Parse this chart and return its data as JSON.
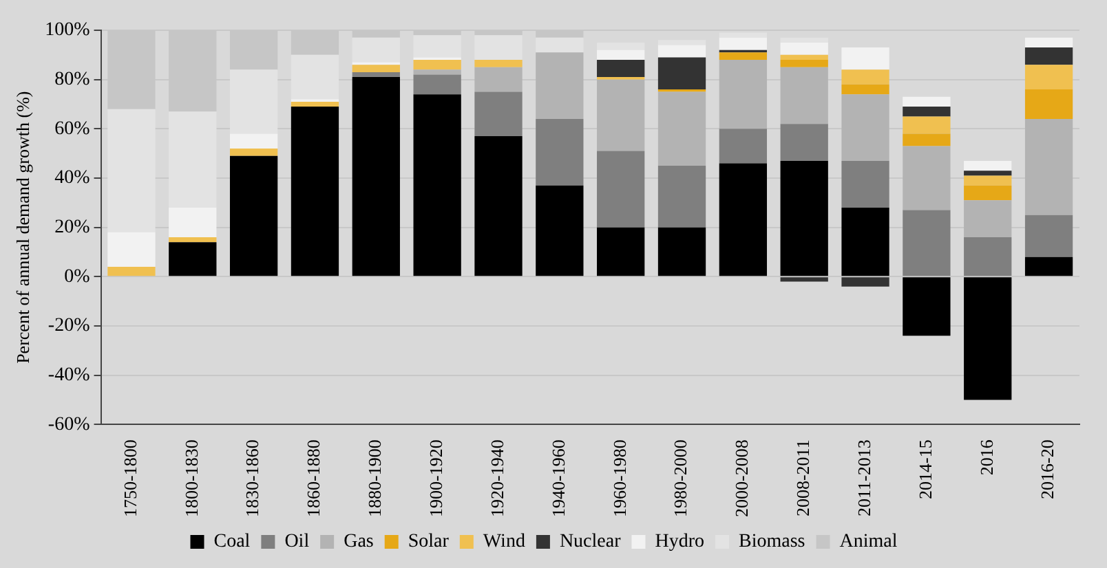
{
  "chart_data": {
    "type": "bar",
    "stacked": true,
    "ylabel": "Percent of annual demand growth (%)",
    "categories": [
      "1750-1800",
      "1800-1830",
      "1830-1860",
      "1860-1880",
      "1880-1900",
      "1900-1920",
      "1920-1940",
      "1940-1960",
      "1960-1980",
      "1980-2000",
      "2000-2008",
      "2008-2011",
      "2011-2013",
      "2014-15",
      "2016",
      "2016-20"
    ],
    "series": [
      {
        "name": "Coal",
        "color": "#000000",
        "values": [
          null,
          14,
          49,
          69,
          81,
          74,
          57,
          37,
          20,
          20,
          46,
          47,
          28,
          -24,
          -50,
          8
        ]
      },
      {
        "name": "Oil",
        "color": "#7f7f7f",
        "values": [
          null,
          null,
          null,
          null,
          2,
          8,
          18,
          27,
          31,
          25,
          14,
          15,
          19,
          27,
          16,
          17
        ]
      },
      {
        "name": "Gas",
        "color": "#b3b3b3",
        "values": [
          null,
          null,
          null,
          null,
          null,
          2,
          10,
          27,
          29,
          30,
          28,
          23,
          27,
          26,
          15,
          39
        ]
      },
      {
        "name": "Solar",
        "color": "#e6a817",
        "values": [
          null,
          null,
          null,
          null,
          null,
          null,
          null,
          null,
          null,
          1,
          3,
          3,
          4,
          5,
          6,
          12
        ]
      },
      {
        "name": "Wind",
        "color": "#f0c050",
        "values": [
          4,
          2,
          3,
          2,
          3,
          4,
          3,
          null,
          1,
          null,
          null,
          2,
          6,
          7,
          4,
          10
        ]
      },
      {
        "name": "Nuclear",
        "color": "#333333",
        "values": [
          null,
          null,
          null,
          null,
          null,
          null,
          null,
          null,
          7,
          13,
          1,
          -2,
          -4,
          4,
          2,
          7
        ]
      },
      {
        "name": "Hydro",
        "color": "#f2f2f2",
        "values": [
          14,
          12,
          6,
          1,
          1,
          1,
          null,
          null,
          4,
          5,
          5,
          5,
          9,
          4,
          4,
          4
        ]
      },
      {
        "name": "Biomass",
        "color": "#e3e3e3",
        "values": [
          50,
          39,
          26,
          18,
          10,
          9,
          10,
          6,
          3,
          2,
          2,
          2,
          null,
          null,
          null,
          null
        ]
      },
      {
        "name": "Animal",
        "color": "#c6c6c6",
        "values": [
          32,
          33,
          16,
          10,
          3,
          2,
          2,
          3,
          null,
          null,
          null,
          null,
          null,
          null,
          null,
          null
        ]
      }
    ],
    "ylim": [
      -60,
      100
    ],
    "yticks": [
      {
        "value": -60,
        "label": "-60%"
      },
      {
        "value": -40,
        "label": "-40%"
      },
      {
        "value": -20,
        "label": "-20%"
      },
      {
        "value": 0,
        "label": "0%"
      },
      {
        "value": 20,
        "label": "20%"
      },
      {
        "value": 40,
        "label": "40%"
      },
      {
        "value": 60,
        "label": "60%"
      },
      {
        "value": 80,
        "label": "80%"
      },
      {
        "value": 100,
        "label": "100%"
      }
    ],
    "grid": "y",
    "legend": "bottom"
  }
}
